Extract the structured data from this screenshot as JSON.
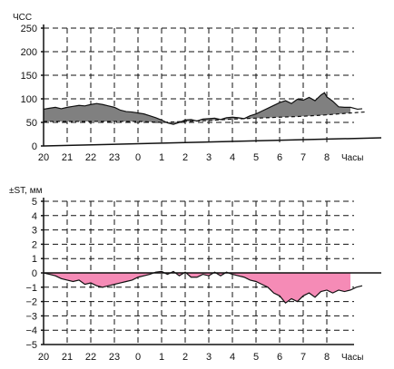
{
  "chart_data": [
    {
      "type": "area",
      "title": "",
      "ylabel": "ЧСС",
      "xlabel": "Часы",
      "x_ticks": [
        "20",
        "21",
        "22",
        "23",
        "0",
        "1",
        "2",
        "3",
        "4",
        "5",
        "6",
        "7",
        "8"
      ],
      "ylim": [
        0,
        250
      ],
      "y_ticks": [
        0,
        50,
        100,
        150,
        200,
        250
      ],
      "grid": true,
      "fill_color": "#808080",
      "baseline_trend": [
        {
          "x": 0,
          "y": 52
        },
        {
          "x": 4,
          "y": 52
        },
        {
          "x": 5,
          "y": 50
        },
        {
          "x": 6,
          "y": 52
        },
        {
          "x": 7,
          "y": 54
        },
        {
          "x": 8,
          "y": 57
        },
        {
          "x": 9,
          "y": 59
        },
        {
          "x": 10,
          "y": 61
        },
        {
          "x": 11,
          "y": 63
        },
        {
          "x": 12,
          "y": 66
        },
        {
          "x": 13,
          "y": 70
        }
      ],
      "series": [
        {
          "values": [
            {
              "x": 0,
              "y": 78
            },
            {
              "x": 0.25,
              "y": 80
            },
            {
              "x": 0.5,
              "y": 82
            },
            {
              "x": 0.75,
              "y": 79
            },
            {
              "x": 1,
              "y": 82
            },
            {
              "x": 1.25,
              "y": 84
            },
            {
              "x": 1.5,
              "y": 86
            },
            {
              "x": 1.75,
              "y": 85
            },
            {
              "x": 2,
              "y": 88
            },
            {
              "x": 2.25,
              "y": 90
            },
            {
              "x": 2.5,
              "y": 88
            },
            {
              "x": 2.75,
              "y": 85
            },
            {
              "x": 3,
              "y": 82
            },
            {
              "x": 3.25,
              "y": 76
            },
            {
              "x": 3.5,
              "y": 73
            },
            {
              "x": 3.75,
              "y": 72
            },
            {
              "x": 4,
              "y": 70
            },
            {
              "x": 4.25,
              "y": 68
            },
            {
              "x": 4.5,
              "y": 64
            },
            {
              "x": 4.75,
              "y": 60
            },
            {
              "x": 5,
              "y": 55
            },
            {
              "x": 5.25,
              "y": 49
            },
            {
              "x": 5.5,
              "y": 46
            },
            {
              "x": 5.75,
              "y": 50
            },
            {
              "x": 6,
              "y": 55
            },
            {
              "x": 6.25,
              "y": 56
            },
            {
              "x": 6.5,
              "y": 53
            },
            {
              "x": 6.75,
              "y": 57
            },
            {
              "x": 7,
              "y": 58
            },
            {
              "x": 7.25,
              "y": 59
            },
            {
              "x": 7.5,
              "y": 56
            },
            {
              "x": 7.75,
              "y": 60
            },
            {
              "x": 8,
              "y": 61
            },
            {
              "x": 8.25,
              "y": 60
            },
            {
              "x": 8.5,
              "y": 58
            },
            {
              "x": 8.75,
              "y": 64
            },
            {
              "x": 9,
              "y": 68
            },
            {
              "x": 9.25,
              "y": 74
            },
            {
              "x": 9.5,
              "y": 80
            },
            {
              "x": 9.75,
              "y": 86
            },
            {
              "x": 10,
              "y": 92
            },
            {
              "x": 10.25,
              "y": 96
            },
            {
              "x": 10.5,
              "y": 90
            },
            {
              "x": 10.75,
              "y": 99
            },
            {
              "x": 11,
              "y": 97
            },
            {
              "x": 11.25,
              "y": 103
            },
            {
              "x": 11.5,
              "y": 96
            },
            {
              "x": 11.75,
              "y": 108
            },
            {
              "x": 11.9,
              "y": 113
            },
            {
              "x": 12,
              "y": 104
            },
            {
              "x": 12.25,
              "y": 95
            },
            {
              "x": 12.5,
              "y": 83
            },
            {
              "x": 12.75,
              "y": 82
            },
            {
              "x": 13,
              "y": 82
            },
            {
              "x": 13.3,
              "y": 78
            },
            {
              "x": 13.5,
              "y": 79
            }
          ]
        }
      ]
    },
    {
      "type": "area",
      "title": "",
      "ylabel": "±ST, мм",
      "xlabel": "Часы",
      "x_ticks": [
        "20",
        "21",
        "22",
        "23",
        "0",
        "1",
        "2",
        "3",
        "4",
        "5",
        "6",
        "7",
        "8"
      ],
      "ylim": [
        -5,
        5
      ],
      "y_ticks": [
        5,
        4,
        3,
        2,
        1,
        0,
        -1,
        -2,
        -3,
        -4,
        -5
      ],
      "y_tick_labels": [
        "5",
        "4",
        "3",
        "2",
        "1",
        "0",
        "−1",
        "−2",
        "−3",
        "−4",
        "−5"
      ],
      "grid": true,
      "fill_color": "#f58bb6",
      "series": [
        {
          "values": [
            {
              "x": 0,
              "y": 0
            },
            {
              "x": 0.25,
              "y": -0.1
            },
            {
              "x": 0.5,
              "y": -0.2
            },
            {
              "x": 0.75,
              "y": -0.4
            },
            {
              "x": 1,
              "y": -0.5
            },
            {
              "x": 1.25,
              "y": -0.6
            },
            {
              "x": 1.5,
              "y": -0.5
            },
            {
              "x": 1.75,
              "y": -0.8
            },
            {
              "x": 2,
              "y": -0.7
            },
            {
              "x": 2.25,
              "y": -0.9
            },
            {
              "x": 2.5,
              "y": -1.0
            },
            {
              "x": 2.75,
              "y": -0.9
            },
            {
              "x": 3,
              "y": -0.8
            },
            {
              "x": 3.25,
              "y": -0.7
            },
            {
              "x": 3.5,
              "y": -0.6
            },
            {
              "x": 3.75,
              "y": -0.5
            },
            {
              "x": 4,
              "y": -0.3
            },
            {
              "x": 4.25,
              "y": -0.2
            },
            {
              "x": 4.5,
              "y": -0.1
            },
            {
              "x": 4.75,
              "y": 0.05
            },
            {
              "x": 5,
              "y": 0.1
            },
            {
              "x": 5.25,
              "y": -0.1
            },
            {
              "x": 5.5,
              "y": 0.1
            },
            {
              "x": 5.75,
              "y": -0.2
            },
            {
              "x": 6,
              "y": 0.05
            },
            {
              "x": 6.25,
              "y": -0.3
            },
            {
              "x": 6.5,
              "y": -0.3
            },
            {
              "x": 6.75,
              "y": -0.1
            },
            {
              "x": 7,
              "y": -0.2
            },
            {
              "x": 7.25,
              "y": 0.05
            },
            {
              "x": 7.5,
              "y": -0.2
            },
            {
              "x": 7.75,
              "y": 0.05
            },
            {
              "x": 8,
              "y": -0.1
            },
            {
              "x": 8.25,
              "y": -0.2
            },
            {
              "x": 8.5,
              "y": -0.3
            },
            {
              "x": 8.75,
              "y": -0.5
            },
            {
              "x": 9,
              "y": -0.6
            },
            {
              "x": 9.25,
              "y": -0.8
            },
            {
              "x": 9.5,
              "y": -1.0
            },
            {
              "x": 9.75,
              "y": -1.4
            },
            {
              "x": 10,
              "y": -1.6
            },
            {
              "x": 10.25,
              "y": -2.1
            },
            {
              "x": 10.5,
              "y": -1.8
            },
            {
              "x": 10.75,
              "y": -2.0
            },
            {
              "x": 11,
              "y": -1.6
            },
            {
              "x": 11.25,
              "y": -1.4
            },
            {
              "x": 11.5,
              "y": -1.7
            },
            {
              "x": 11.75,
              "y": -1.3
            },
            {
              "x": 12,
              "y": -1.2
            },
            {
              "x": 12.25,
              "y": -1.4
            },
            {
              "x": 12.5,
              "y": -1.2
            },
            {
              "x": 12.75,
              "y": -1.3
            },
            {
              "x": 13,
              "y": -1.2
            },
            {
              "x": 13.25,
              "y": -1.0
            },
            {
              "x": 13.5,
              "y": -0.9
            }
          ]
        }
      ]
    }
  ]
}
